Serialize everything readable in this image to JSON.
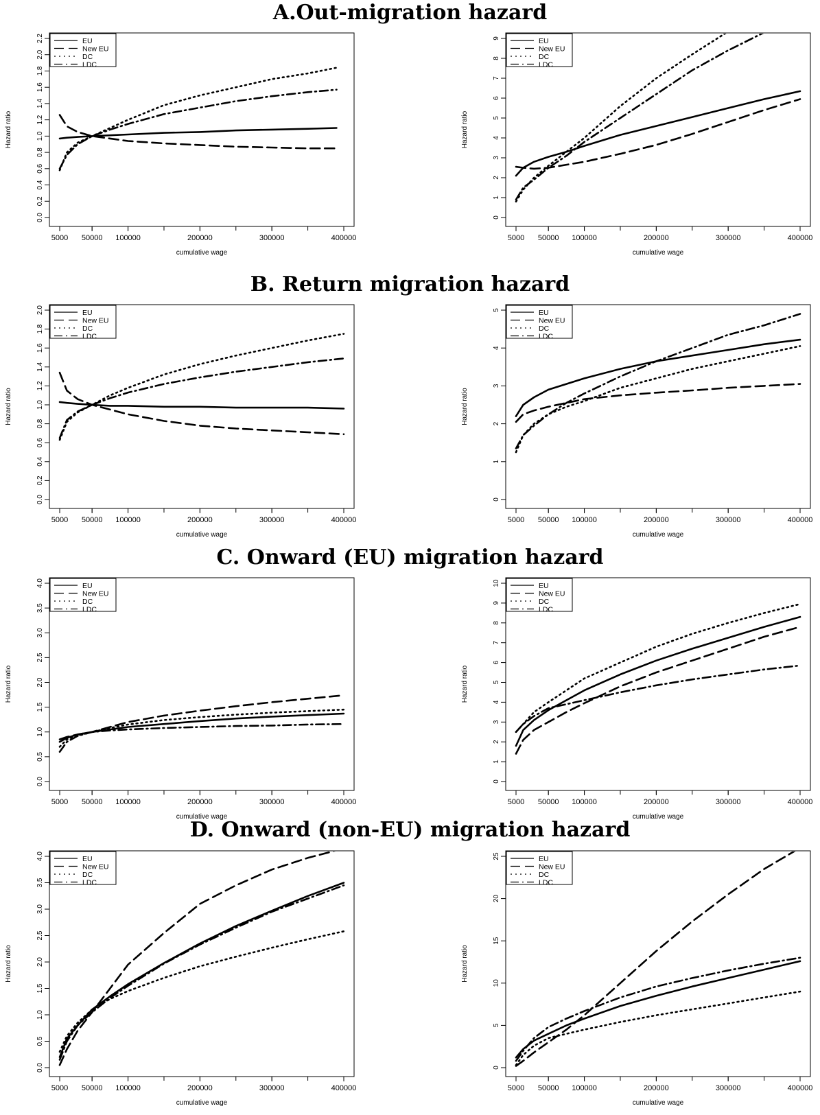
{
  "panel_titles": [
    "A.Out-migration hazard",
    "B. Return migration hazard",
    "C. Onward (EU) migration hazard",
    "D. Onward (non-EU) migration hazard"
  ],
  "legend_entries": [
    "EU",
    "New EU",
    "DC",
    "LDC"
  ],
  "styles": {
    "line_color": "#000000",
    "background": "#ffffff"
  },
  "chart_data": [
    {
      "type": "line",
      "title": "",
      "xlabel": "cumulative wage",
      "ylabel": "Hazard ratio",
      "xlim": [
        5000,
        400000
      ],
      "xticks": [
        5000,
        50000,
        100000,
        200000,
        300000,
        400000
      ],
      "ylim": [
        0,
        2.2
      ],
      "yticks": [
        "0.0",
        "0.2",
        "0.4",
        "0.6",
        "0.8",
        "1.0",
        "1.2",
        "1.4",
        "1.6",
        "1.8",
        "2.0",
        "2.2"
      ],
      "legend": "top-left",
      "grid": false,
      "x": [
        5000,
        15000,
        30000,
        50000,
        75000,
        100000,
        150000,
        200000,
        250000,
        300000,
        350000,
        390000
      ],
      "series": [
        {
          "name": "EU",
          "values": [
            0.97,
            0.98,
            0.99,
            1.0,
            1.01,
            1.02,
            1.04,
            1.05,
            1.07,
            1.08,
            1.09,
            1.1
          ]
        },
        {
          "name": "New EU",
          "values": [
            1.26,
            1.12,
            1.05,
            1.0,
            0.97,
            0.94,
            0.91,
            0.89,
            0.87,
            0.86,
            0.85,
            0.85
          ]
        },
        {
          "name": "DC",
          "values": [
            0.58,
            0.8,
            0.92,
            1.0,
            1.1,
            1.2,
            1.38,
            1.5,
            1.6,
            1.7,
            1.77,
            1.84
          ]
        },
        {
          "name": "LDC",
          "values": [
            0.6,
            0.77,
            0.9,
            1.0,
            1.08,
            1.15,
            1.27,
            1.35,
            1.43,
            1.49,
            1.54,
            1.57
          ]
        }
      ]
    },
    {
      "type": "line",
      "title": "",
      "xlabel": "cumulative wage",
      "ylabel": "Hazard ratio",
      "xlim": [
        5000,
        400000
      ],
      "xticks": [
        5000,
        50000,
        100000,
        200000,
        300000,
        400000
      ],
      "ylim": [
        0,
        9
      ],
      "yticks": [
        "0",
        "1",
        "2",
        "3",
        "4",
        "5",
        "6",
        "7",
        "8",
        "9"
      ],
      "legend": "top-left",
      "grid": false,
      "x": [
        5000,
        15000,
        30000,
        50000,
        75000,
        100000,
        150000,
        200000,
        250000,
        300000,
        350000,
        400000
      ],
      "series": [
        {
          "name": "EU",
          "values": [
            2.1,
            2.5,
            2.8,
            3.05,
            3.3,
            3.6,
            4.15,
            4.6,
            5.05,
            5.5,
            5.95,
            6.35
          ]
        },
        {
          "name": "New EU",
          "values": [
            2.55,
            2.5,
            2.45,
            2.5,
            2.65,
            2.8,
            3.2,
            3.65,
            4.2,
            4.8,
            5.4,
            5.95
          ]
        },
        {
          "name": "DC",
          "values": [
            0.8,
            1.4,
            2.0,
            2.6,
            3.3,
            4.0,
            5.6,
            7.0,
            8.2,
            9.35,
            null,
            null
          ]
        },
        {
          "name": "LDC",
          "values": [
            0.9,
            1.5,
            1.9,
            2.5,
            3.1,
            3.8,
            5.0,
            6.2,
            7.4,
            8.4,
            9.3,
            null
          ]
        }
      ]
    },
    {
      "type": "line",
      "title": "",
      "xlabel": "cumulative wage",
      "ylabel": "Hazard ratio",
      "xlim": [
        5000,
        400000
      ],
      "xticks": [
        5000,
        50000,
        100000,
        200000,
        300000,
        400000
      ],
      "ylim": [
        0,
        2.0
      ],
      "yticks": [
        "0.0",
        "0.2",
        "0.4",
        "0.6",
        "0.8",
        "1.0",
        "1.2",
        "1.4",
        "1.6",
        "1.8",
        "2.0"
      ],
      "legend": "top-left",
      "grid": false,
      "x": [
        5000,
        15000,
        30000,
        50000,
        75000,
        100000,
        150000,
        200000,
        250000,
        300000,
        350000,
        400000
      ],
      "series": [
        {
          "name": "EU",
          "values": [
            1.03,
            1.02,
            1.01,
            1.0,
            0.99,
            0.99,
            0.98,
            0.98,
            0.97,
            0.97,
            0.97,
            0.96
          ]
        },
        {
          "name": "New EU",
          "values": [
            1.34,
            1.15,
            1.06,
            1.0,
            0.95,
            0.9,
            0.83,
            0.78,
            0.75,
            0.73,
            0.71,
            0.69
          ]
        },
        {
          "name": "DC",
          "values": [
            0.63,
            0.82,
            0.92,
            1.0,
            1.1,
            1.18,
            1.32,
            1.43,
            1.52,
            1.6,
            1.68,
            1.75
          ]
        },
        {
          "name": "LDC",
          "values": [
            0.65,
            0.84,
            0.93,
            1.0,
            1.07,
            1.13,
            1.22,
            1.29,
            1.35,
            1.4,
            1.45,
            1.49
          ]
        }
      ]
    },
    {
      "type": "line",
      "title": "",
      "xlabel": "cumulative wage",
      "ylabel": "Hazard ratio",
      "xlim": [
        5000,
        400000
      ],
      "xticks": [
        5000,
        50000,
        100000,
        200000,
        300000,
        400000
      ],
      "ylim": [
        0,
        5
      ],
      "yticks": [
        "0",
        "1",
        "2",
        "3",
        "4",
        "5"
      ],
      "legend": "top-left",
      "grid": false,
      "x": [
        5000,
        15000,
        30000,
        50000,
        75000,
        100000,
        150000,
        200000,
        250000,
        300000,
        350000,
        400000
      ],
      "series": [
        {
          "name": "EU",
          "values": [
            2.2,
            2.5,
            2.7,
            2.9,
            3.05,
            3.2,
            3.45,
            3.65,
            3.8,
            3.95,
            4.1,
            4.22
          ]
        },
        {
          "name": "New EU",
          "values": [
            2.05,
            2.25,
            2.35,
            2.45,
            2.55,
            2.65,
            2.75,
            2.82,
            2.88,
            2.95,
            3.0,
            3.05
          ]
        },
        {
          "name": "DC",
          "values": [
            1.25,
            1.7,
            2.0,
            2.25,
            2.45,
            2.6,
            2.95,
            3.2,
            3.45,
            3.65,
            3.85,
            4.05
          ]
        },
        {
          "name": "LDC",
          "values": [
            1.35,
            1.7,
            1.95,
            2.25,
            2.55,
            2.8,
            3.25,
            3.65,
            4.0,
            4.35,
            4.6,
            4.9
          ]
        }
      ]
    },
    {
      "type": "line",
      "title": "",
      "xlabel": "cumulative wage",
      "ylabel": "Hazard ratio",
      "xlim": [
        5000,
        400000
      ],
      "xticks": [
        5000,
        50000,
        100000,
        200000,
        300000,
        400000
      ],
      "ylim": [
        0,
        4.0
      ],
      "yticks": [
        "0.0",
        "0.5",
        "1.0",
        "1.5",
        "2.0",
        "2.5",
        "3.0",
        "3.5",
        "4.0"
      ],
      "legend": "top-left",
      "grid": false,
      "x": [
        5000,
        15000,
        30000,
        50000,
        75000,
        100000,
        150000,
        200000,
        250000,
        300000,
        350000,
        400000
      ],
      "series": [
        {
          "name": "EU",
          "values": [
            0.8,
            0.88,
            0.95,
            1.0,
            1.05,
            1.1,
            1.16,
            1.22,
            1.27,
            1.31,
            1.34,
            1.37
          ]
        },
        {
          "name": "New EU",
          "values": [
            0.85,
            0.9,
            0.95,
            1.0,
            1.1,
            1.2,
            1.33,
            1.43,
            1.52,
            1.6,
            1.67,
            1.74
          ]
        },
        {
          "name": "DC",
          "values": [
            0.7,
            0.85,
            0.93,
            1.0,
            1.08,
            1.15,
            1.24,
            1.3,
            1.35,
            1.39,
            1.42,
            1.45
          ]
        },
        {
          "name": "LDC",
          "values": [
            0.6,
            0.8,
            0.92,
            1.0,
            1.03,
            1.05,
            1.08,
            1.1,
            1.12,
            1.13,
            1.15,
            1.16
          ]
        }
      ]
    },
    {
      "type": "line",
      "title": "",
      "xlabel": "cumulative wage",
      "ylabel": "Hazard ratio",
      "xlim": [
        5000,
        400000
      ],
      "xticks": [
        5000,
        50000,
        100000,
        200000,
        300000,
        400000
      ],
      "ylim": [
        0,
        10
      ],
      "yticks": [
        "0",
        "1",
        "2",
        "3",
        "4",
        "5",
        "6",
        "7",
        "8",
        "9",
        "10"
      ],
      "legend": "top-left",
      "grid": false,
      "x": [
        5000,
        15000,
        30000,
        50000,
        75000,
        100000,
        150000,
        200000,
        250000,
        300000,
        350000,
        400000
      ],
      "series": [
        {
          "name": "EU",
          "values": [
            1.8,
            2.6,
            3.1,
            3.6,
            4.1,
            4.6,
            5.4,
            6.1,
            6.7,
            7.25,
            7.8,
            8.3
          ]
        },
        {
          "name": "New EU",
          "values": [
            1.4,
            2.1,
            2.6,
            3.0,
            3.5,
            3.95,
            4.8,
            5.5,
            6.1,
            6.7,
            7.3,
            7.8
          ]
        },
        {
          "name": "DC",
          "values": [
            2.5,
            2.9,
            3.5,
            4.0,
            4.6,
            5.2,
            6.0,
            6.8,
            7.45,
            8.0,
            8.5,
            8.95
          ]
        },
        {
          "name": "LDC",
          "values": [
            2.5,
            2.9,
            3.3,
            3.7,
            3.9,
            4.1,
            4.5,
            4.85,
            5.15,
            5.4,
            5.65,
            5.85
          ]
        }
      ]
    },
    {
      "type": "line",
      "title": "",
      "xlabel": "cumulative wage",
      "ylabel": "Hazard ratio",
      "xlim": [
        5000,
        400000
      ],
      "xticks": [
        5000,
        50000,
        100000,
        200000,
        300000,
        400000
      ],
      "ylim": [
        0,
        4.0
      ],
      "yticks": [
        "0.0",
        "0.5",
        "1.0",
        "1.5",
        "2.0",
        "2.5",
        "3.0",
        "3.5",
        "4.0"
      ],
      "legend": "top-left",
      "grid": false,
      "x": [
        5000,
        15000,
        30000,
        50000,
        75000,
        100000,
        150000,
        200000,
        250000,
        300000,
        350000,
        400000
      ],
      "series": [
        {
          "name": "EU",
          "values": [
            0.2,
            0.55,
            0.8,
            1.1,
            1.35,
            1.58,
            1.98,
            2.35,
            2.68,
            2.97,
            3.25,
            3.5
          ]
        },
        {
          "name": "New EU",
          "values": [
            0.05,
            0.35,
            0.7,
            1.05,
            1.5,
            1.95,
            2.55,
            3.1,
            3.45,
            3.75,
            3.97,
            4.15
          ]
        },
        {
          "name": "DC",
          "values": [
            0.3,
            0.6,
            0.85,
            1.1,
            1.3,
            1.45,
            1.7,
            1.92,
            2.1,
            2.27,
            2.43,
            2.58
          ]
        },
        {
          "name": "LDC",
          "values": [
            0.15,
            0.5,
            0.8,
            1.05,
            1.32,
            1.55,
            1.97,
            2.33,
            2.65,
            2.95,
            3.2,
            3.45
          ]
        }
      ]
    },
    {
      "type": "line",
      "title": "",
      "xlabel": "cumulative wage",
      "ylabel": "Hazard ratio",
      "xlim": [
        5000,
        400000
      ],
      "xticks": [
        5000,
        50000,
        100000,
        200000,
        300000,
        400000
      ],
      "ylim": [
        0,
        25
      ],
      "yticks": [
        "0",
        "5",
        "10",
        "15",
        "20",
        "25"
      ],
      "legend": "top-left",
      "grid": false,
      "x": [
        5000,
        15000,
        30000,
        50000,
        75000,
        100000,
        150000,
        200000,
        250000,
        300000,
        350000,
        400000
      ],
      "series": [
        {
          "name": "EU",
          "values": [
            1.2,
            2.2,
            3.2,
            4.0,
            5.0,
            5.8,
            7.3,
            8.5,
            9.6,
            10.6,
            11.6,
            12.6
          ]
        },
        {
          "name": "New EU",
          "values": [
            0.2,
            0.8,
            1.8,
            3.0,
            4.5,
            6.2,
            10.0,
            13.8,
            17.3,
            20.5,
            23.5,
            26.0
          ]
        },
        {
          "name": "DC",
          "values": [
            0.3,
            1.5,
            2.6,
            3.5,
            4.0,
            4.5,
            5.4,
            6.2,
            6.9,
            7.6,
            8.3,
            9.0
          ]
        },
        {
          "name": "LDC",
          "values": [
            0.8,
            2.0,
            3.5,
            4.8,
            5.8,
            6.7,
            8.3,
            9.6,
            10.6,
            11.5,
            12.3,
            13.0
          ]
        }
      ]
    }
  ]
}
